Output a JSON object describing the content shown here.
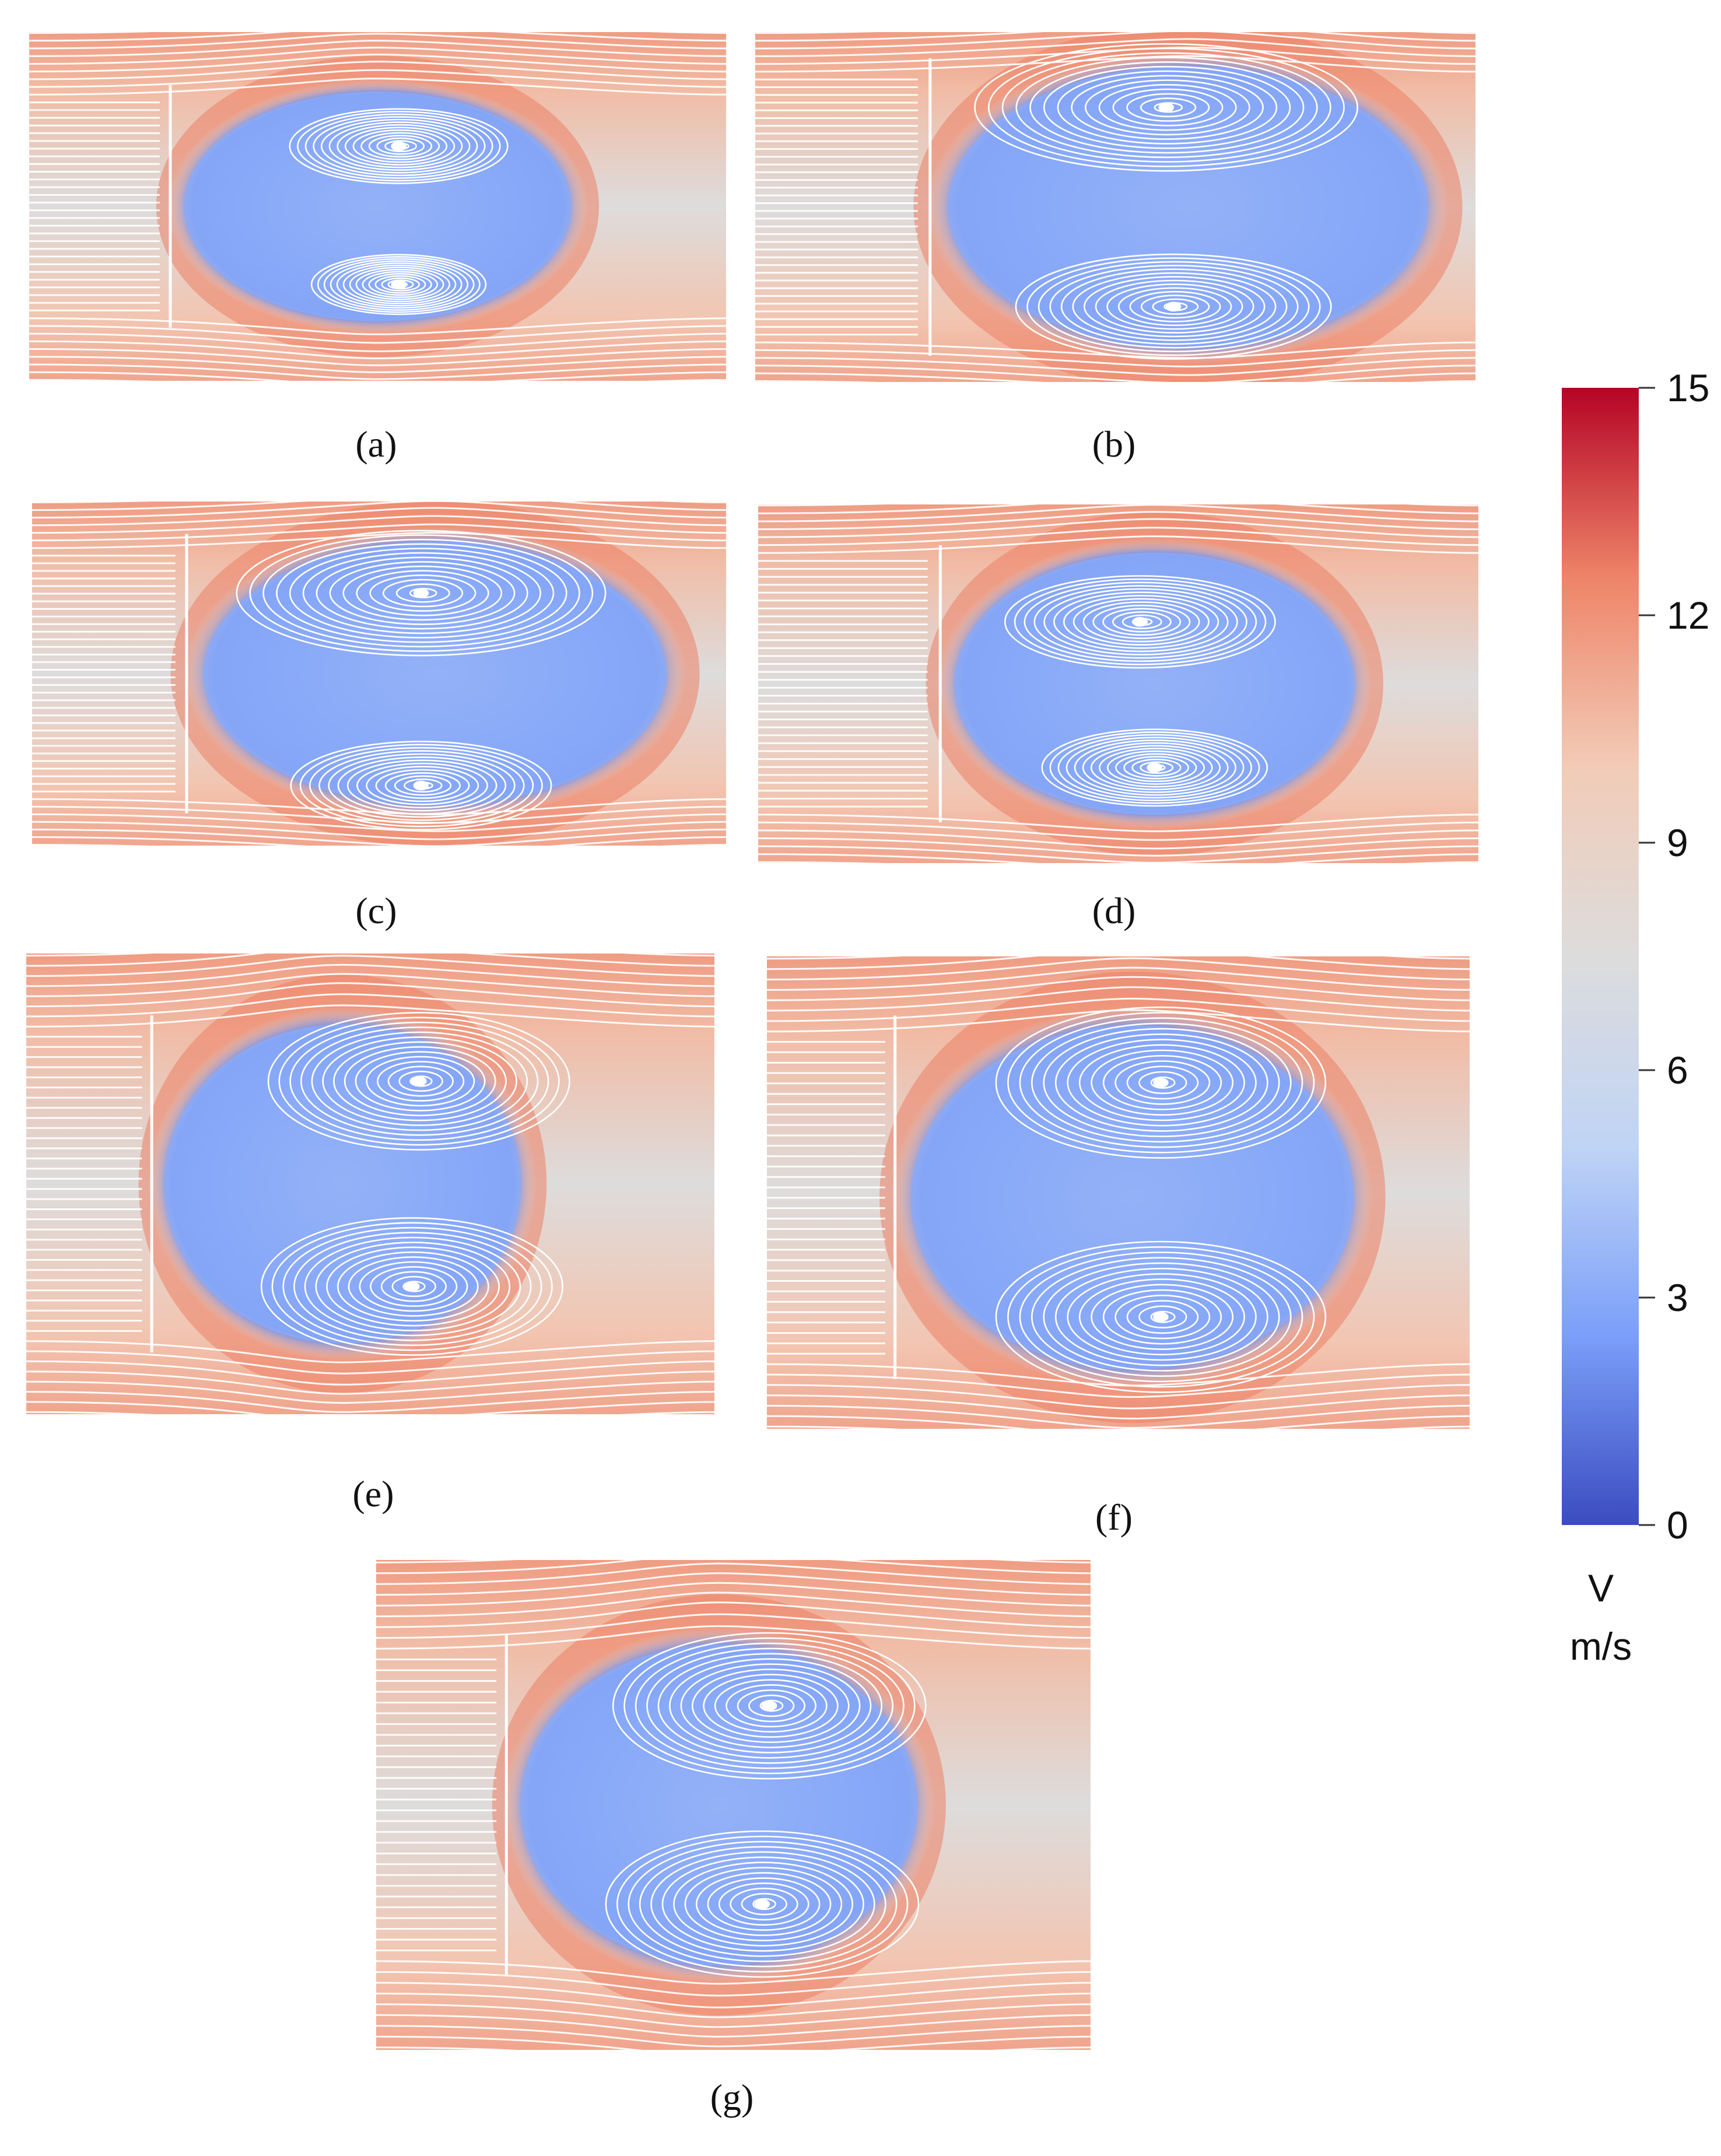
{
  "figure": {
    "panels": [
      {
        "id": "a",
        "caption": "(a)"
      },
      {
        "id": "b",
        "caption": "(b)"
      },
      {
        "id": "c",
        "caption": "(c)"
      },
      {
        "id": "d",
        "caption": "(d)"
      },
      {
        "id": "e",
        "caption": "(e)"
      },
      {
        "id": "f",
        "caption": "(f)"
      },
      {
        "id": "g",
        "caption": "(g)"
      }
    ],
    "colorbar": {
      "quantity": "V",
      "unit": "m/s",
      "min": 0,
      "max": 15,
      "ticks": [
        "15",
        "12",
        "9",
        "6",
        "3",
        "0"
      ],
      "colormap": [
        "#3b4cc0",
        "#7b9ff9",
        "#c0d4f5",
        "#dddcdc",
        "#f2cbb7",
        "#ee8468",
        "#b40426"
      ]
    }
  }
}
